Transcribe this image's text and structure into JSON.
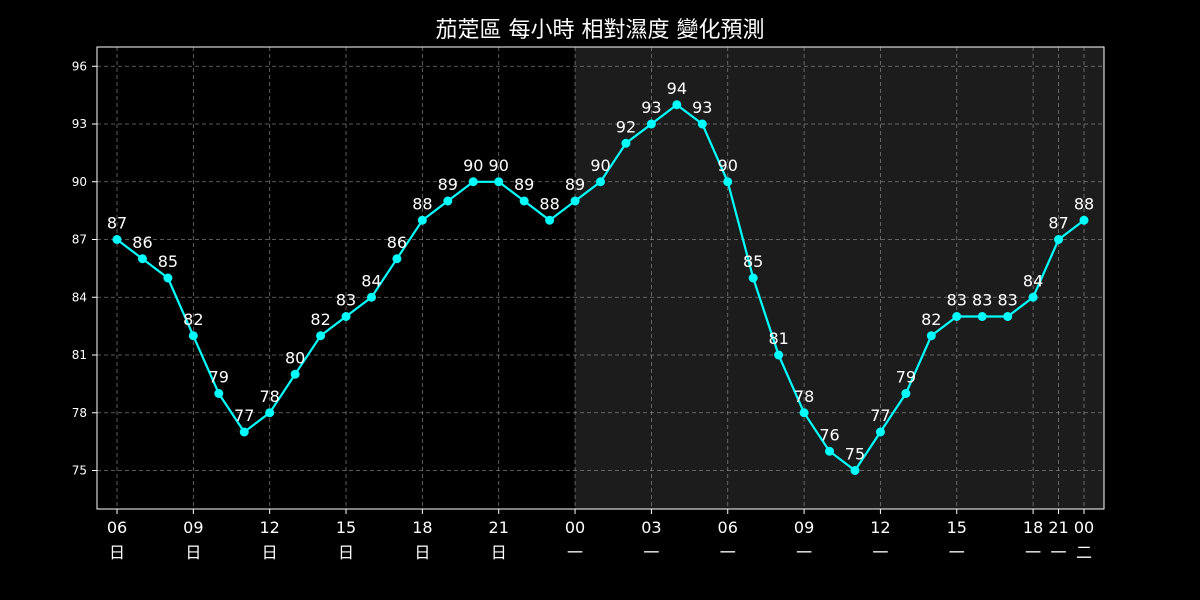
{
  "chart_data": {
    "type": "line",
    "title": "茄萣區 每小時 相對濕度 變化預測",
    "xlabel": "",
    "ylabel": "",
    "ylim": [
      73,
      97
    ],
    "yticks": [
      75,
      78,
      81,
      84,
      87,
      90,
      93,
      96
    ],
    "grid": true,
    "night_shade_start_index": 18,
    "colors": {
      "background": "#000000",
      "shade": "#1c1c1c",
      "line": "#00ffff",
      "text": "#ffffff",
      "axes": "#ffffff"
    },
    "x_tick_labels": [
      {
        "index": 0,
        "hour": "06",
        "day": "日"
      },
      {
        "index": 3,
        "hour": "09",
        "day": "日"
      },
      {
        "index": 6,
        "hour": "12",
        "day": "日"
      },
      {
        "index": 9,
        "hour": "15",
        "day": "日"
      },
      {
        "index": 12,
        "hour": "18",
        "day": "日"
      },
      {
        "index": 15,
        "hour": "21",
        "day": "日"
      },
      {
        "index": 18,
        "hour": "00",
        "day": "一"
      },
      {
        "index": 21,
        "hour": "03",
        "day": "一"
      },
      {
        "index": 24,
        "hour": "06",
        "day": "一"
      },
      {
        "index": 27,
        "hour": "09",
        "day": "一"
      },
      {
        "index": 30,
        "hour": "12",
        "day": "一"
      },
      {
        "index": 33,
        "hour": "15",
        "day": "一"
      },
      {
        "index": 36,
        "hour": "18",
        "day": "一"
      },
      {
        "index": 37,
        "hour": "21",
        "day": "一"
      },
      {
        "index": 38,
        "hour": "00",
        "day": "二"
      }
    ],
    "series": [
      {
        "values": [
          87,
          86,
          85,
          82,
          79,
          77,
          78,
          80,
          82,
          83,
          84,
          86,
          88,
          89,
          90,
          90,
          89,
          88,
          89,
          90,
          92,
          93,
          94,
          93,
          90,
          85,
          81,
          78,
          76,
          75,
          77,
          79,
          82,
          83,
          83,
          83,
          84,
          87,
          88
        ]
      }
    ]
  }
}
